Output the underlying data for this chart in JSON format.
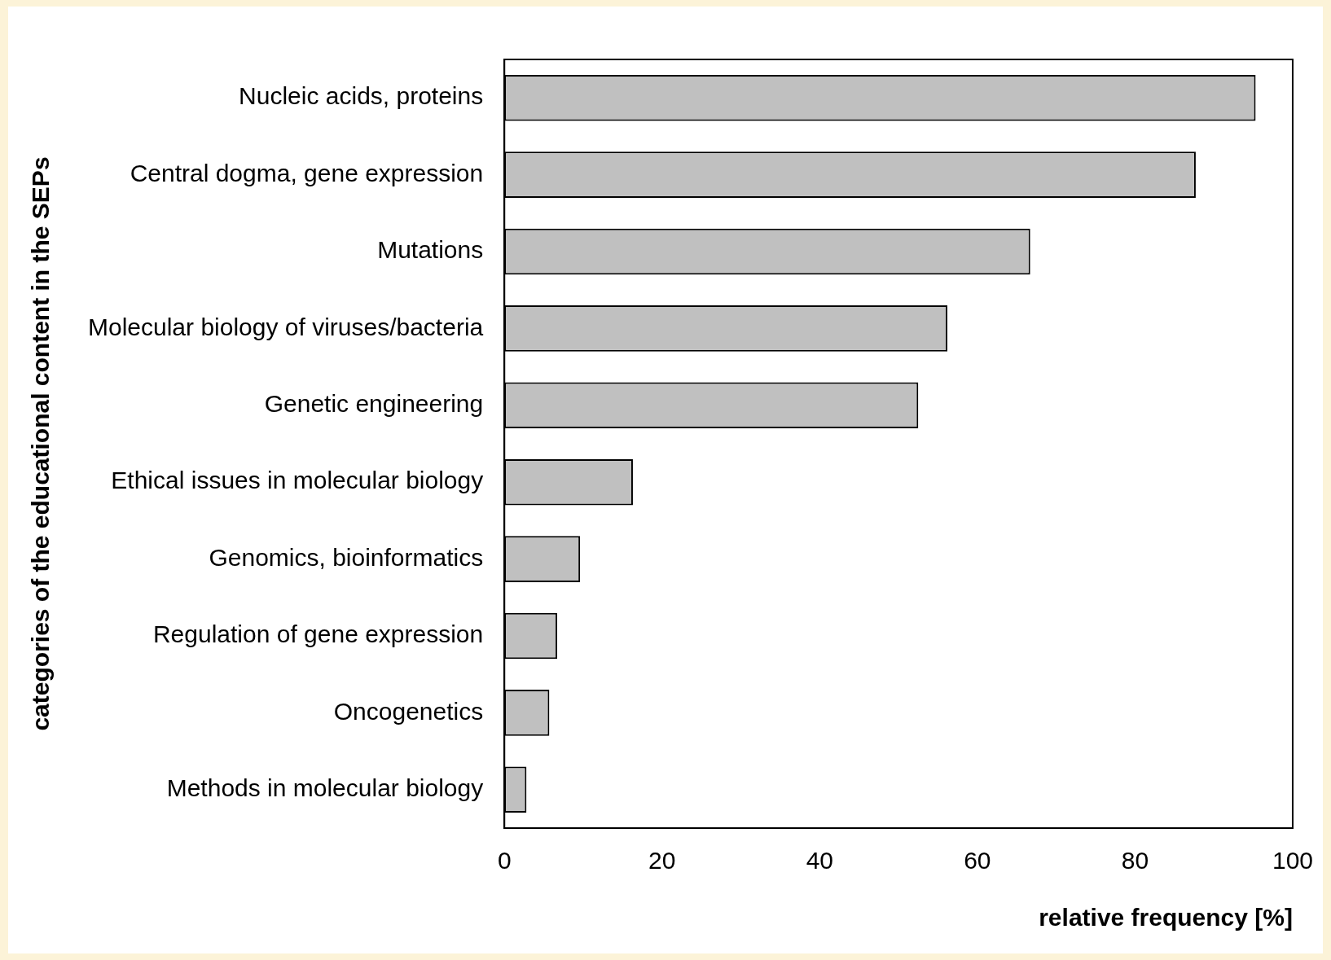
{
  "chart_data": {
    "type": "bar",
    "orientation": "horizontal",
    "xlabel": "relative frequency [%]",
    "ylabel": "categories of the educational content in the SEPs",
    "categories": [
      "Nucleic acids, proteins",
      "Central dogma, gene expression",
      "Mutations",
      "Molecular biology of viruses/bacteria",
      "Genetic engineering",
      "Ethical issues in molecular biology",
      "Genomics, bioinformatics",
      "Regulation of gene expression",
      "Oncogenetics",
      "Methods in molecular biology"
    ],
    "values": [
      95.3,
      87.7,
      66.7,
      56.2,
      52.5,
      16.3,
      9.6,
      6.7,
      5.7,
      2.8
    ],
    "color": "#c0c0c0",
    "xlim": [
      0,
      100
    ],
    "xticks": [
      0,
      20,
      40,
      60,
      80,
      100
    ]
  }
}
